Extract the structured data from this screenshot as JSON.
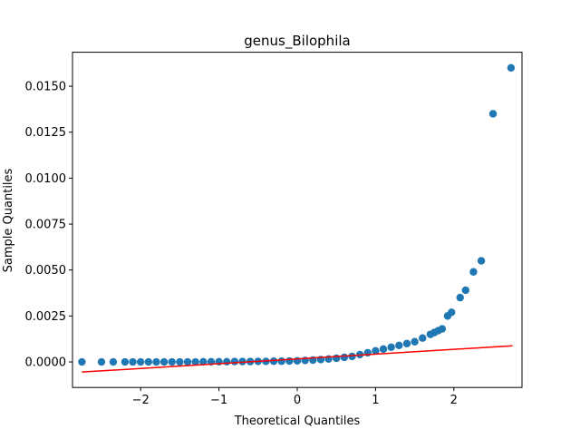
{
  "chart_data": {
    "type": "scatter",
    "title": "genus_Bilophila",
    "x_label": "Theoretical Quantiles",
    "y_label": "Sample Quantiles",
    "xlim": [
      -2.87,
      2.87
    ],
    "ylim": [
      -0.00139,
      0.01685
    ],
    "xticks": [
      {
        "value": -2,
        "label": "−2"
      },
      {
        "value": -1,
        "label": "−1"
      },
      0,
      1,
      2
    ],
    "yticks": [
      {
        "value": 0,
        "label": "0.0000"
      },
      {
        "value": 0.0025,
        "label": "0.0025"
      },
      {
        "value": 0.005,
        "label": "0.0050"
      },
      {
        "value": 0.0075,
        "label": "0.0075"
      },
      {
        "value": 0.01,
        "label": "0.0100"
      },
      {
        "value": 0.0125,
        "label": "0.0125"
      },
      {
        "value": 0.015,
        "label": "0.0150"
      }
    ],
    "points": {
      "color": "#1f77b4",
      "x": [
        -2.75,
        -2.5,
        -2.35,
        -2.2,
        -2.1,
        -2.0,
        -1.9,
        -1.8,
        -1.7,
        -1.6,
        -1.5,
        -1.4,
        -1.3,
        -1.2,
        -1.1,
        -1.0,
        -0.9,
        -0.8,
        -0.7,
        -0.6,
        -0.5,
        -0.4,
        -0.3,
        -0.2,
        -0.1,
        0,
        0.1,
        0.2,
        0.3,
        0.4,
        0.5,
        0.6,
        0.7,
        0.8,
        0.9,
        1.0,
        1.1,
        1.2,
        1.3,
        1.4,
        1.5,
        1.6,
        1.7,
        1.75,
        1.8,
        1.85,
        1.92,
        1.97,
        2.08,
        2.15,
        2.25,
        2.35,
        2.5,
        2.73
      ],
      "y": [
        0,
        0,
        0,
        0,
        0,
        0,
        0,
        0,
        0,
        0,
        0,
        0,
        0,
        1e-05,
        1e-05,
        1e-05,
        1e-05,
        2e-05,
        2e-05,
        2e-05,
        3e-05,
        3e-05,
        4e-05,
        4e-05,
        5e-05,
        6e-05,
        8e-05,
        0.0001,
        0.00013,
        0.00016,
        0.0002,
        0.00025,
        0.0003,
        0.0004,
        0.0005,
        0.0006,
        0.0007,
        0.0008,
        0.0009,
        0.001,
        0.0011,
        0.0013,
        0.0015,
        0.0016,
        0.0017,
        0.0018,
        0.0025,
        0.0027,
        0.0035,
        0.0039,
        0.0049,
        0.0055,
        0.0135,
        0.016
      ]
    },
    "fit_line": {
      "color": "#ff0000",
      "x": [
        -2.75,
        2.75
      ],
      "y": [
        -0.00055,
        0.00088
      ]
    }
  }
}
